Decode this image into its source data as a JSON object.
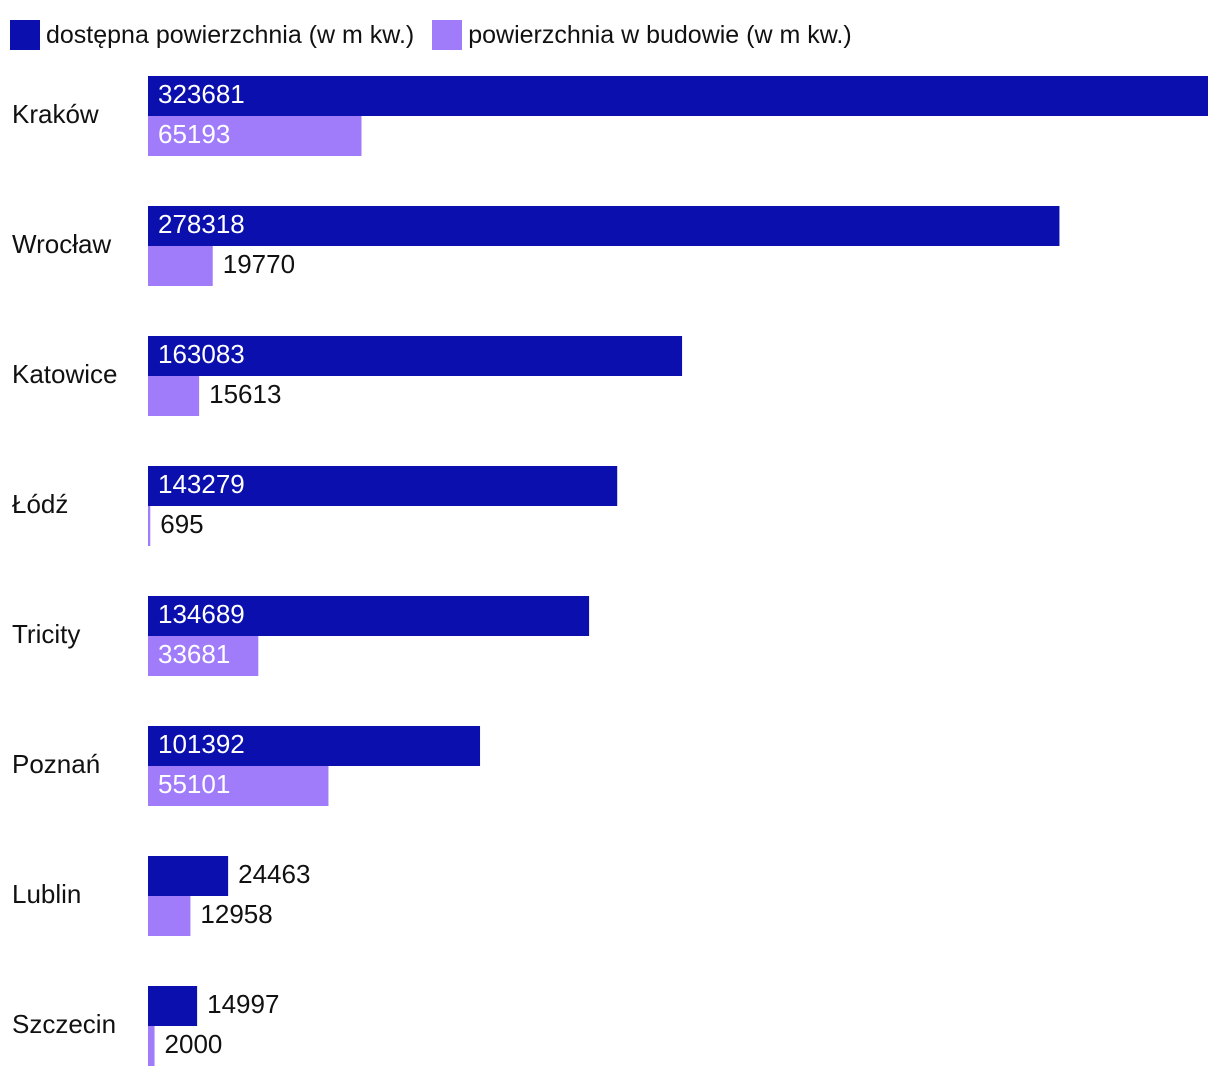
{
  "chart_data": {
    "type": "bar",
    "orientation": "horizontal",
    "categories": [
      "Kraków",
      "Wrocław",
      "Katowice",
      "Łódź",
      "Tricity",
      "Poznań",
      "Lublin",
      "Szczecin"
    ],
    "series": [
      {
        "name": "dostępna powierzchnia (w m kw.)",
        "color": "#0a0fad",
        "values": [
          323681,
          278318,
          163083,
          143279,
          134689,
          101392,
          24463,
          14997
        ]
      },
      {
        "name": "powierzchnia w budowie (w m kw.)",
        "color": "#a07cfa",
        "values": [
          65193,
          19770,
          15613,
          695,
          33681,
          55101,
          12958,
          2000
        ]
      }
    ],
    "xlim": [
      0,
      323681
    ],
    "legend_position": "top-left",
    "data_labels": true,
    "grid": false
  }
}
